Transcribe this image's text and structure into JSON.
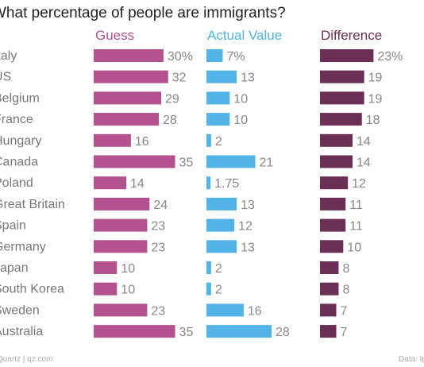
{
  "title": "What percentage of people are immigrants?",
  "footer": {
    "source_left": "Quartz | qz.com",
    "source_right": "Data: Ips"
  },
  "colors": {
    "guess": "#b3528f",
    "actual": "#52b4e6",
    "difference": "#6b2f55"
  },
  "chart_data": {
    "type": "bar",
    "orientation": "horizontal",
    "title": "What percentage of people are immigrants?",
    "categories": [
      "Italy",
      "US",
      "Belgium",
      "France",
      "Hungary",
      "Canada",
      "Poland",
      "Great Britain",
      "Spain",
      "Germany",
      "Japan",
      "South Korea",
      "Sweden",
      "Australia"
    ],
    "series": [
      {
        "name": "Guess",
        "values": [
          30,
          32,
          29,
          28,
          16,
          35,
          14,
          24,
          23,
          23,
          10,
          10,
          23,
          35
        ],
        "labels": [
          "30%",
          "32",
          "29",
          "28",
          "16",
          "35",
          "14",
          "24",
          "23",
          "23",
          "10",
          "10",
          "23",
          "35"
        ]
      },
      {
        "name": "Actual Value",
        "values": [
          7,
          13,
          10,
          10,
          2,
          21,
          1.75,
          13,
          12,
          13,
          2,
          2,
          16,
          28
        ],
        "labels": [
          "7%",
          "13",
          "10",
          "10",
          "2",
          "21",
          "1.75",
          "13",
          "12",
          "13",
          "2",
          "2",
          "16",
          "28"
        ]
      },
      {
        "name": "Difference",
        "values": [
          23,
          19,
          19,
          18,
          14,
          14,
          12,
          11,
          11,
          10,
          8,
          8,
          7,
          7
        ],
        "labels": [
          "23%",
          "19",
          "19",
          "18",
          "14",
          "14",
          "12",
          "11",
          "11",
          "10",
          "8",
          "8",
          "7",
          "7"
        ]
      }
    ],
    "grid": false,
    "legend": "column headers"
  }
}
